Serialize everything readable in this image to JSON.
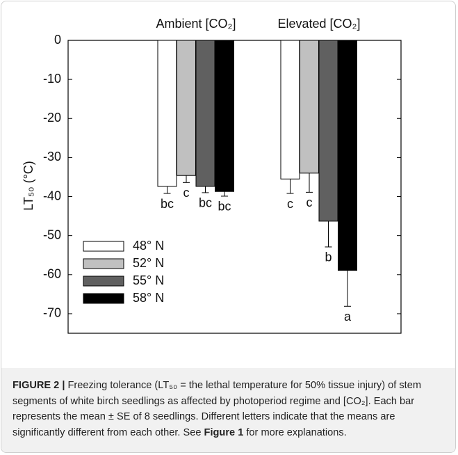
{
  "chart_data": {
    "type": "bar",
    "categories": [
      "Ambient [CO₂]",
      "Elevated [CO₂]"
    ],
    "y_label": "LT₅₀ (°C)",
    "ylim": [
      -75,
      0
    ],
    "yticks": [
      0,
      -10,
      -20,
      -30,
      -40,
      -50,
      -60,
      -70
    ],
    "legend": "lower left",
    "series": [
      {
        "name": "48° N",
        "color": "#ffffff",
        "values": [
          -37.4,
          -35.5
        ],
        "errors": [
          1.8,
          3.7
        ],
        "letters": [
          "bc",
          "c"
        ]
      },
      {
        "name": "52° N",
        "color": "#c0c0c0",
        "values": [
          -34.6,
          -34.0
        ],
        "errors": [
          1.8,
          4.9
        ],
        "letters": [
          "c",
          "c"
        ]
      },
      {
        "name": "55° N",
        "color": "#606060",
        "values": [
          -37.4,
          -46.3
        ],
        "errors": [
          1.6,
          6.6
        ],
        "letters": [
          "bc",
          "b"
        ]
      },
      {
        "name": "58° N",
        "color": "#000000",
        "values": [
          -38.7,
          -58.9
        ],
        "errors": [
          1.2,
          9.2
        ],
        "letters": [
          "bc",
          "a"
        ]
      }
    ]
  },
  "caption": {
    "label": "FIGURE 2 |",
    "text1": " Freezing tolerance (LT₅₀ = the lethal temperature for 50% tissue injury) of stem segments of white birch seedlings as affected by photoperiod regime and [CO₂]. Each bar represents the mean ± SE of 8 seedlings. Different letters indicate that the means are significantly different from each other. See ",
    "ref": "Figure 1",
    "text2": " for more explanations."
  }
}
